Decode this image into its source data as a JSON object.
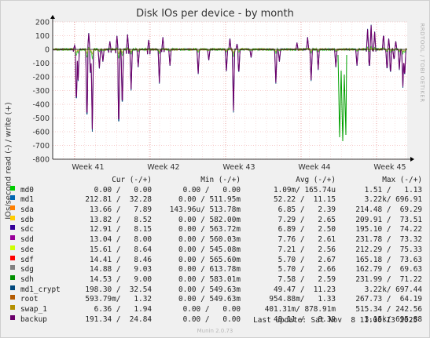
{
  "chart_data": {
    "type": "line",
    "title": "Disk IOs per device - by month",
    "ylabel": "IOs/second read (-) / write (+)",
    "ylim": [
      -800,
      200
    ],
    "yticks": [
      200,
      100,
      0,
      -100,
      -200,
      -300,
      -400,
      -500,
      -600,
      -700,
      -800
    ],
    "xticks": [
      "Week 41",
      "Week 42",
      "Week 43",
      "Week 44",
      "Week 45"
    ],
    "grid": true,
    "vertical_watermark": "RRDTOOL / TOBI OETIKER",
    "columns": {
      "cur": "Cur (-/+)",
      "min": "Min (-/+)",
      "avg": "Avg (-/+)",
      "max": "Max (-/+)"
    },
    "series": [
      {
        "name": "md0",
        "color": "#00cc00",
        "cur": "0.00 /   0.00",
        "min": "0.00 /   0.00",
        "avg": "1.09m/ 165.74u",
        "max": "1.51 /   1.13"
      },
      {
        "name": "md1",
        "color": "#0066b3",
        "cur": "212.81 /  32.28",
        "min": "0.00 / 511.95m",
        "avg": "52.22 /  11.15",
        "max": "3.22k/ 696.91"
      },
      {
        "name": "sda",
        "color": "#ff8000",
        "cur": "13.66 /   7.89",
        "min": "143.96u/ 513.78m",
        "avg": "6.85 /   2.39",
        "max": "214.48 /  69.29"
      },
      {
        "name": "sdb",
        "color": "#ffcc00",
        "cur": "13.82 /   8.52",
        "min": "0.00 / 582.00m",
        "avg": "7.29 /   2.65",
        "max": "209.91 /  73.51"
      },
      {
        "name": "sdc",
        "color": "#330099",
        "cur": "12.91 /   8.15",
        "min": "0.00 / 563.72m",
        "avg": "6.89 /   2.50",
        "max": "195.10 /  74.22"
      },
      {
        "name": "sdd",
        "color": "#990099",
        "cur": "13.04 /   8.00",
        "min": "0.00 / 560.03m",
        "avg": "7.76 /   2.61",
        "max": "231.78 /  73.32"
      },
      {
        "name": "sde",
        "color": "#ccff00",
        "cur": "15.61 /   8.64",
        "min": "0.00 / 545.08m",
        "avg": "7.21 /   2.56",
        "max": "212.29 /  75.33"
      },
      {
        "name": "sdf",
        "color": "#ff0000",
        "cur": "14.41 /   8.46",
        "min": "0.00 / 565.60m",
        "avg": "5.70 /   2.67",
        "max": "165.18 /  73.63"
      },
      {
        "name": "sdg",
        "color": "#808080",
        "cur": "14.88 /   9.03",
        "min": "0.00 / 613.78m",
        "avg": "5.70 /   2.66",
        "max": "162.79 /  69.63"
      },
      {
        "name": "sdh",
        "color": "#008f00",
        "cur": "14.53 /   9.00",
        "min": "0.00 / 583.01m",
        "avg": "7.58 /   2.59",
        "max": "231.99 /  71.22"
      },
      {
        "name": "md1_crypt",
        "color": "#00487d",
        "cur": "198.30 /  32.54",
        "min": "0.00 / 549.63m",
        "avg": "49.47 /  11.23",
        "max": "3.22k/ 697.44"
      },
      {
        "name": "root",
        "color": "#b35a00",
        "cur": "593.79m/   1.32",
        "min": "0.00 / 549.63m",
        "avg": "954.88m/   1.33",
        "max": "267.73 /  64.19"
      },
      {
        "name": "swap_1",
        "color": "#b38f00",
        "cur": "6.36 /   1.94",
        "min": "0.00 /   0.00",
        "avg": "401.31m/ 878.91m",
        "max": "515.34 / 242.56"
      },
      {
        "name": "backup",
        "color": "#6b006b",
        "cur": "191.34 /  24.84",
        "min": "0.00 /   0.00",
        "avg": "48.11 /   8.39",
        "max": "3.15k/ 695.88"
      }
    ]
  },
  "last_update": "Last update: Sat Nov  8 11:00:13 2025",
  "footer": "Munin 2.0.73"
}
